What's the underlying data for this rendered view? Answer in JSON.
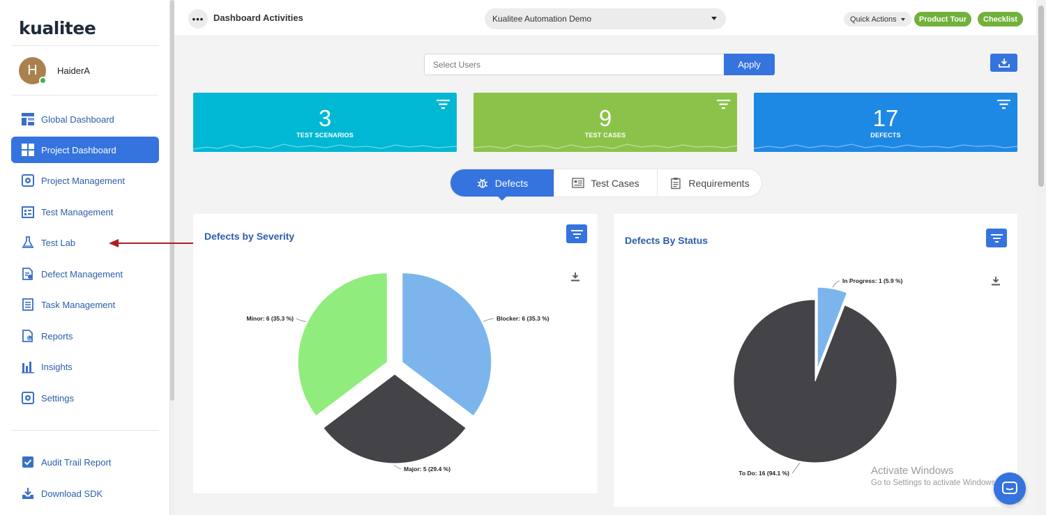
{
  "app": {
    "logo_text": "kualitee"
  },
  "user": {
    "initial": "H",
    "name": "HaiderA"
  },
  "sidebar": {
    "items": [
      {
        "label": "Global Dashboard",
        "icon": "dashboard-icon",
        "active": false
      },
      {
        "label": "Project Dashboard",
        "icon": "grid-icon",
        "active": true
      },
      {
        "label": "Project Management",
        "icon": "project-gear-icon",
        "active": false
      },
      {
        "label": "Test Management",
        "icon": "test-management-icon",
        "active": false
      },
      {
        "label": "Test Lab",
        "icon": "flask-icon",
        "active": false
      },
      {
        "label": "Defect Management",
        "icon": "defect-doc-icon",
        "active": false
      },
      {
        "label": "Task Management",
        "icon": "task-list-icon",
        "active": false
      },
      {
        "label": "Reports",
        "icon": "report-icon",
        "active": false
      },
      {
        "label": "Insights",
        "icon": "bar-chart-icon",
        "active": false
      },
      {
        "label": "Settings",
        "icon": "settings-icon",
        "active": false
      }
    ],
    "bottom_items": [
      {
        "label": "Audit Trail Report",
        "icon": "checkbox-icon"
      },
      {
        "label": "Download SDK",
        "icon": "download-tray-icon"
      }
    ]
  },
  "topbar": {
    "title": "Dashboard Activities",
    "project": "Kualitee Automation Demo",
    "quick_actions": "Quick Actions",
    "product_tour": "Product Tour",
    "checklist": "Checklist"
  },
  "filter": {
    "placeholder": "Select Users",
    "apply": "Apply"
  },
  "stats": [
    {
      "value": "3",
      "label": "TEST SCENARIOS",
      "color": "#00b8d4"
    },
    {
      "value": "9",
      "label": "TEST CASES",
      "color": "#8bc34a"
    },
    {
      "value": "17",
      "label": "DEFECTS",
      "color": "#1e88e5"
    }
  ],
  "tabs": [
    {
      "label": "Defects",
      "icon": "bug-icon",
      "active": true
    },
    {
      "label": "Test Cases",
      "icon": "test-case-icon",
      "active": false
    },
    {
      "label": "Requirements",
      "icon": "clipboard-icon",
      "active": false
    }
  ],
  "panels": {
    "severity": {
      "title": "Defects by Severity"
    },
    "status": {
      "title": "Defects By Status"
    }
  },
  "chart_data": [
    {
      "type": "pie",
      "title": "Defects by Severity",
      "categories": [
        "Blocker",
        "Major",
        "Minor"
      ],
      "values": [
        6,
        5,
        6
      ],
      "labels": [
        "Blocker: 6 (35.3 %)",
        "Major: 5 (29.4 %)",
        "Minor: 6 (35.3 %)"
      ],
      "colors": [
        "#7cb5ec",
        "#434348",
        "#90ed7d"
      ]
    },
    {
      "type": "pie",
      "title": "Defects By Status",
      "categories": [
        "In Progress",
        "To Do"
      ],
      "values": [
        1,
        16
      ],
      "labels": [
        "In Progress: 1 (5.9 %)",
        "To Do: 16 (94.1 %)"
      ],
      "colors": [
        "#7cb5ec",
        "#434348"
      ]
    }
  ],
  "watermark": {
    "line1": "Activate Windows",
    "line2": "Go to Settings to activate Windows."
  }
}
